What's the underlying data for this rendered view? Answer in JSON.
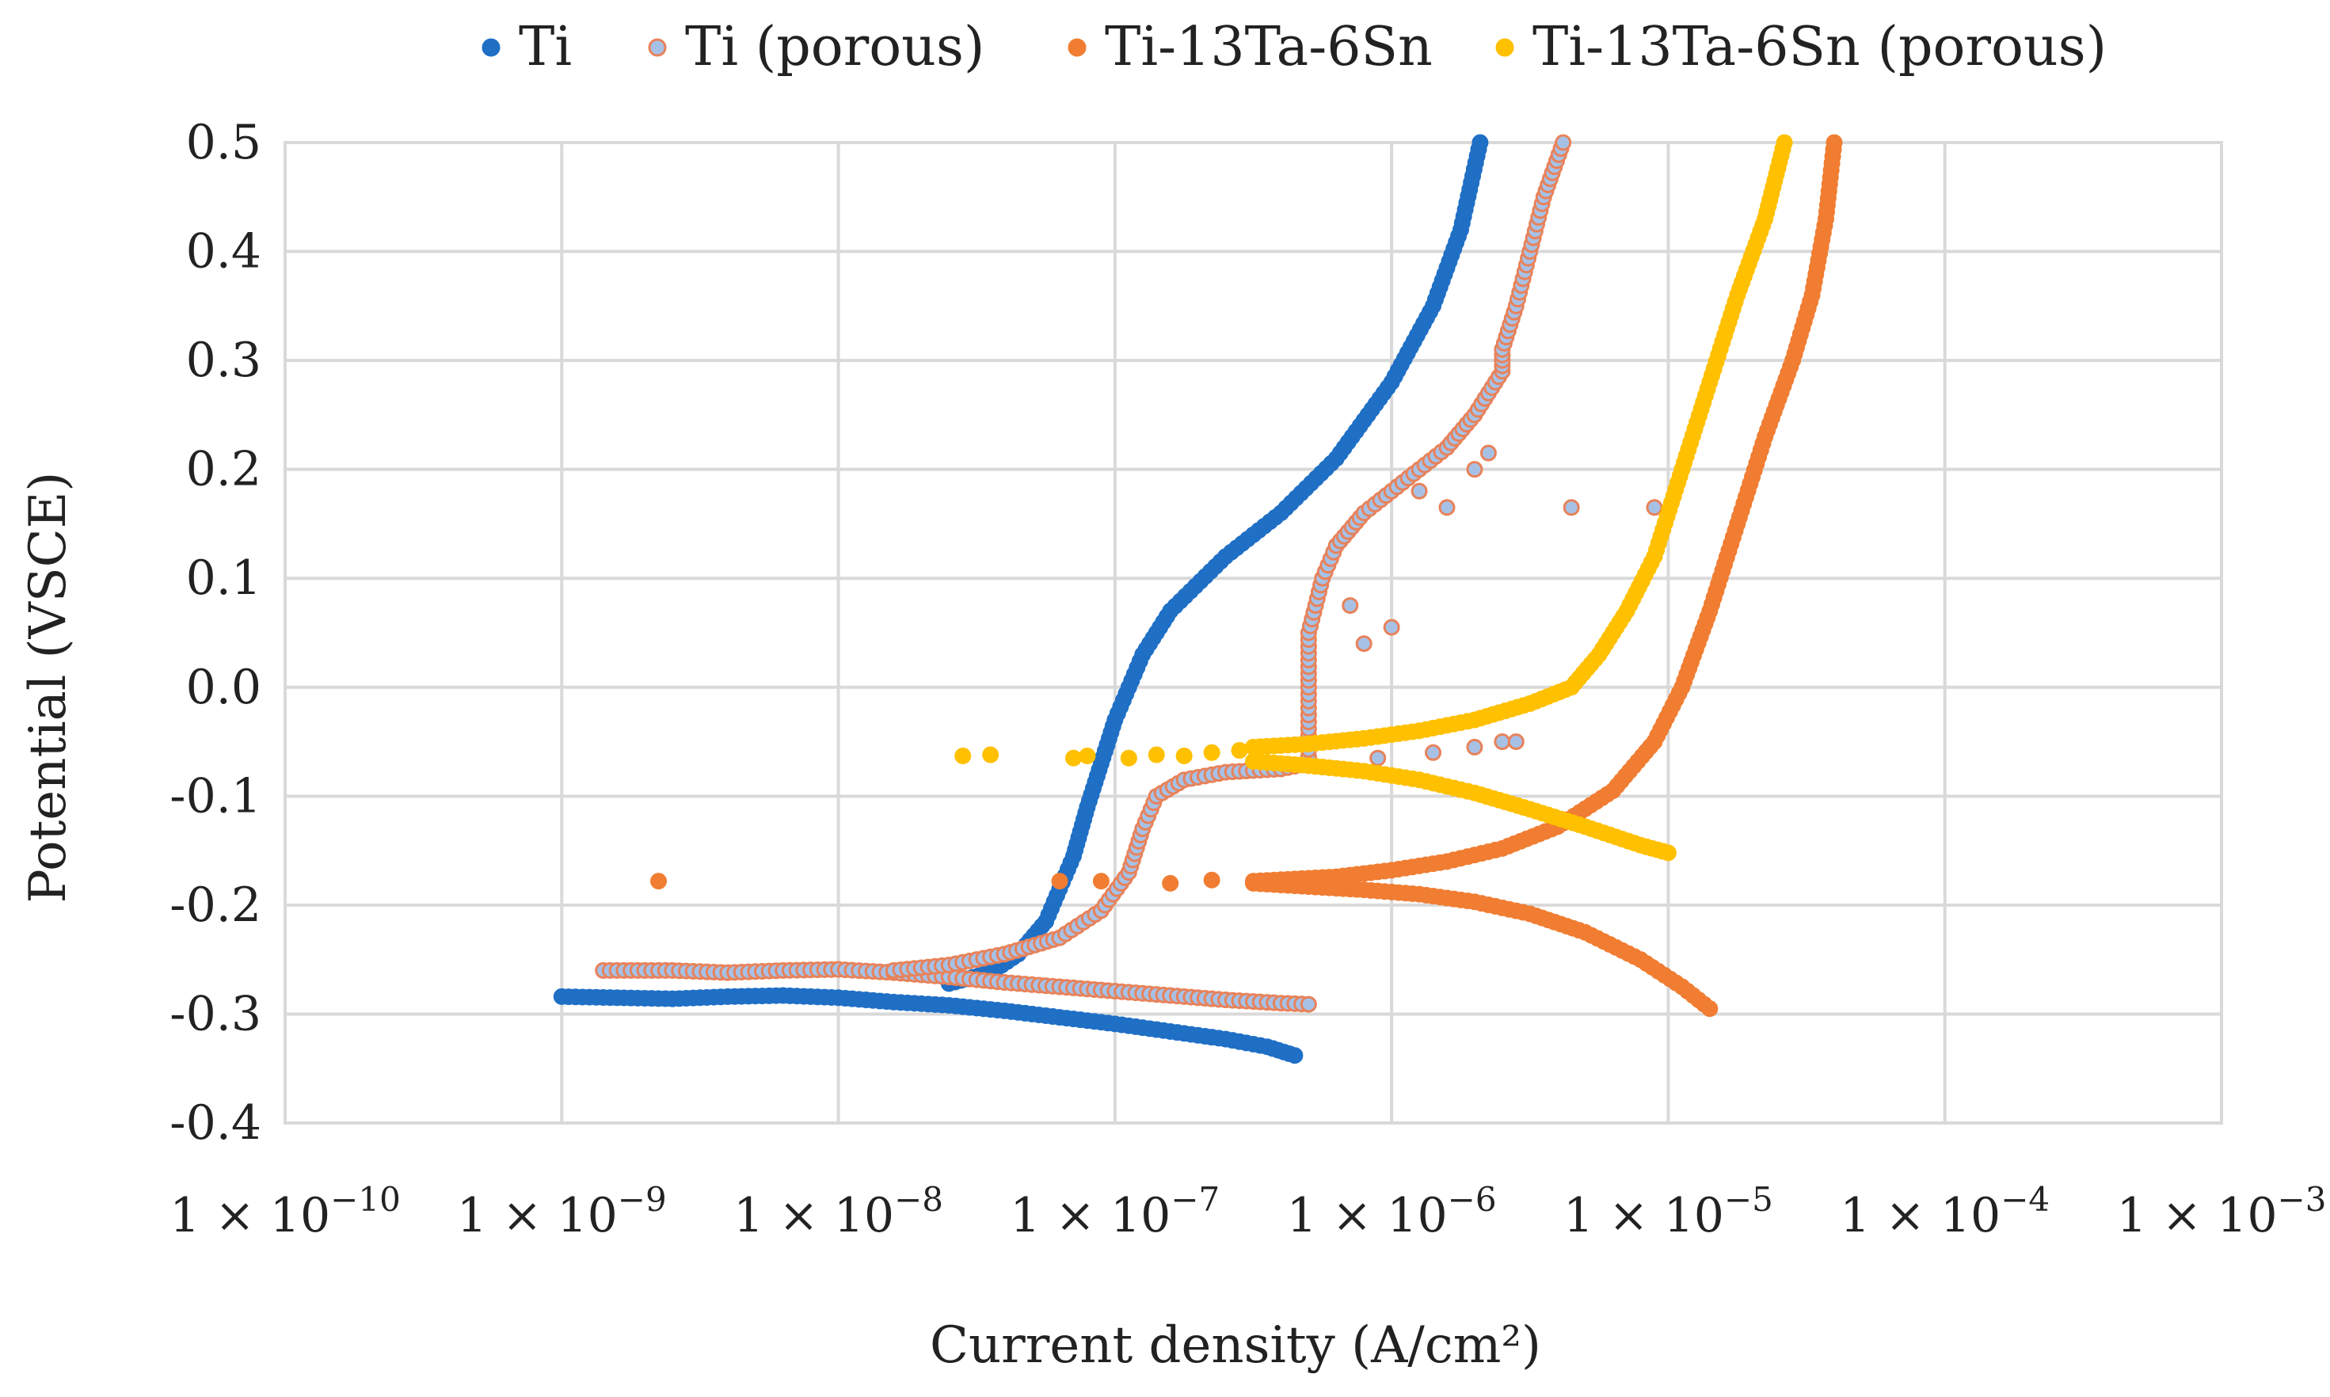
{
  "chart_data": {
    "type": "scatter",
    "title": "",
    "xlabel": "Current density (A/cm²)",
    "ylabel": "Potential (VSCE)",
    "xscale": "log",
    "xlim": [
      1e-10,
      0.001
    ],
    "ylim": [
      -0.4,
      0.5
    ],
    "grid": true,
    "legend_position": "top",
    "x_tick_labels": [
      {
        "coef": "1 × 10",
        "exp": "−10"
      },
      {
        "coef": "1 × 10",
        "exp": "−9"
      },
      {
        "coef": "1 × 10",
        "exp": "−8"
      },
      {
        "coef": "1 × 10",
        "exp": "−7"
      },
      {
        "coef": "1 × 10",
        "exp": "−6"
      },
      {
        "coef": "1 × 10",
        "exp": "−5"
      },
      {
        "coef": "1 × 10",
        "exp": "−4"
      },
      {
        "coef": "1 × 10",
        "exp": "−3"
      }
    ],
    "y_ticks": [
      "0.5",
      "0.4",
      "0.3",
      "0.2",
      "0.1",
      "0.0",
      "-0.1",
      "-0.2",
      "-0.3",
      "-0.4"
    ],
    "series": [
      {
        "name": "Ti",
        "color": "#1f6fc5",
        "marker_edge": "#1f6fc5",
        "cathodic": [
          [
            -9.0,
            -0.284
          ],
          [
            -8.8,
            -0.285
          ],
          [
            -8.6,
            -0.286
          ],
          [
            -8.4,
            -0.284
          ],
          [
            -8.2,
            -0.283
          ],
          [
            -8.0,
            -0.285
          ],
          [
            -7.8,
            -0.289
          ],
          [
            -7.6,
            -0.292
          ],
          [
            -7.4,
            -0.297
          ],
          [
            -7.2,
            -0.303
          ],
          [
            -7.0,
            -0.309
          ],
          [
            -6.8,
            -0.316
          ],
          [
            -6.6,
            -0.323
          ],
          [
            -6.45,
            -0.33
          ],
          [
            -6.35,
            -0.338
          ]
        ],
        "anodic": [
          [
            -7.6,
            -0.272
          ],
          [
            -7.45,
            -0.262
          ],
          [
            -7.35,
            -0.245
          ],
          [
            -7.25,
            -0.215
          ],
          [
            -7.2,
            -0.185
          ],
          [
            -7.15,
            -0.155
          ],
          [
            -7.1,
            -0.11
          ],
          [
            -7.05,
            -0.07
          ],
          [
            -7.0,
            -0.03
          ],
          [
            -6.95,
            0.0
          ],
          [
            -6.9,
            0.03
          ],
          [
            -6.8,
            0.07
          ],
          [
            -6.6,
            0.12
          ],
          [
            -6.4,
            0.16
          ],
          [
            -6.2,
            0.21
          ],
          [
            -6.0,
            0.28
          ],
          [
            -5.85,
            0.35
          ],
          [
            -5.75,
            0.42
          ],
          [
            -5.68,
            0.5
          ]
        ]
      },
      {
        "name": "Ti (porous)",
        "color": "#a7c1e6",
        "marker_edge": "#e8825a",
        "cathodic": [
          [
            -8.85,
            -0.26
          ],
          [
            -8.6,
            -0.26
          ],
          [
            -8.4,
            -0.262
          ],
          [
            -8.2,
            -0.26
          ],
          [
            -8.0,
            -0.259
          ],
          [
            -7.8,
            -0.262
          ],
          [
            -7.6,
            -0.266
          ],
          [
            -7.4,
            -0.271
          ],
          [
            -7.2,
            -0.275
          ],
          [
            -7.0,
            -0.279
          ],
          [
            -6.8,
            -0.283
          ],
          [
            -6.6,
            -0.287
          ],
          [
            -6.4,
            -0.29
          ],
          [
            -6.3,
            -0.291
          ]
        ],
        "anodic": [
          [
            -7.8,
            -0.26
          ],
          [
            -7.6,
            -0.255
          ],
          [
            -7.4,
            -0.245
          ],
          [
            -7.2,
            -0.23
          ],
          [
            -7.05,
            -0.205
          ],
          [
            -6.95,
            -0.17
          ],
          [
            -6.9,
            -0.13
          ],
          [
            -6.85,
            -0.1
          ],
          [
            -6.75,
            -0.085
          ],
          [
            -6.6,
            -0.078
          ],
          [
            -6.4,
            -0.075
          ],
          [
            -6.3,
            -0.07
          ],
          [
            -6.3,
            0.0
          ],
          [
            -6.3,
            0.05
          ],
          [
            -6.25,
            0.1
          ],
          [
            -6.2,
            0.13
          ],
          [
            -6.1,
            0.16
          ],
          [
            -6.0,
            0.18
          ],
          [
            -5.9,
            0.2
          ],
          [
            -5.8,
            0.22
          ],
          [
            -5.7,
            0.25
          ],
          [
            -5.6,
            0.29
          ],
          [
            -5.6,
            0.31
          ],
          [
            -5.55,
            0.35
          ],
          [
            -5.5,
            0.4
          ],
          [
            -5.45,
            0.45
          ],
          [
            -5.38,
            0.5
          ]
        ],
        "scatter_extra": [
          [
            -6.05,
            -0.065
          ],
          [
            -5.85,
            -0.06
          ],
          [
            -5.7,
            -0.055
          ],
          [
            -5.6,
            -0.05
          ],
          [
            -5.55,
            -0.05
          ],
          [
            -6.0,
            0.055
          ],
          [
            -6.1,
            0.04
          ],
          [
            -6.15,
            0.075
          ],
          [
            -5.8,
            0.165
          ],
          [
            -5.9,
            0.18
          ],
          [
            -5.7,
            0.2
          ],
          [
            -5.65,
            0.215
          ],
          [
            -5.35,
            0.165
          ],
          [
            -5.05,
            0.165
          ]
        ]
      },
      {
        "name": "Ti-13Ta-6Sn",
        "color": "#f07d32",
        "marker_edge": "#f07d32",
        "cathodic": [
          [
            -6.5,
            -0.18
          ],
          [
            -6.3,
            -0.183
          ],
          [
            -6.1,
            -0.186
          ],
          [
            -5.9,
            -0.19
          ],
          [
            -5.7,
            -0.197
          ],
          [
            -5.5,
            -0.208
          ],
          [
            -5.3,
            -0.225
          ],
          [
            -5.1,
            -0.25
          ],
          [
            -4.95,
            -0.275
          ],
          [
            -4.85,
            -0.295
          ]
        ],
        "anodic": [
          [
            -6.5,
            -0.178
          ],
          [
            -6.2,
            -0.174
          ],
          [
            -6.0,
            -0.168
          ],
          [
            -5.8,
            -0.16
          ],
          [
            -5.6,
            -0.148
          ],
          [
            -5.4,
            -0.128
          ],
          [
            -5.2,
            -0.095
          ],
          [
            -5.05,
            -0.05
          ],
          [
            -4.95,
            0.0
          ],
          [
            -4.85,
            0.07
          ],
          [
            -4.75,
            0.15
          ],
          [
            -4.65,
            0.23
          ],
          [
            -4.55,
            0.3
          ],
          [
            -4.48,
            0.36
          ],
          [
            -4.43,
            0.43
          ],
          [
            -4.4,
            0.5
          ]
        ],
        "scatter_extra": [
          [
            -8.65,
            -0.178
          ],
          [
            -7.2,
            -0.178
          ],
          [
            -7.05,
            -0.178
          ],
          [
            -6.8,
            -0.18
          ],
          [
            -6.65,
            -0.177
          ]
        ]
      },
      {
        "name": "Ti-13Ta-6Sn (porous)",
        "color": "#ffc000",
        "marker_edge": "#ffc000",
        "cathodic": [
          [
            -6.5,
            -0.068
          ],
          [
            -6.3,
            -0.072
          ],
          [
            -6.1,
            -0.077
          ],
          [
            -5.9,
            -0.085
          ],
          [
            -5.7,
            -0.097
          ],
          [
            -5.5,
            -0.112
          ],
          [
            -5.3,
            -0.128
          ],
          [
            -5.1,
            -0.145
          ],
          [
            -5.0,
            -0.152
          ]
        ],
        "anodic": [
          [
            -6.5,
            -0.055
          ],
          [
            -6.3,
            -0.052
          ],
          [
            -6.1,
            -0.047
          ],
          [
            -5.9,
            -0.04
          ],
          [
            -5.7,
            -0.03
          ],
          [
            -5.5,
            -0.015
          ],
          [
            -5.35,
            0.0
          ],
          [
            -5.25,
            0.03
          ],
          [
            -5.15,
            0.07
          ],
          [
            -5.05,
            0.12
          ],
          [
            -4.95,
            0.2
          ],
          [
            -4.85,
            0.28
          ],
          [
            -4.75,
            0.36
          ],
          [
            -4.65,
            0.43
          ],
          [
            -4.58,
            0.5
          ]
        ],
        "scatter_extra": [
          [
            -7.55,
            -0.063
          ],
          [
            -7.45,
            -0.062
          ],
          [
            -7.15,
            -0.065
          ],
          [
            -7.1,
            -0.063
          ],
          [
            -6.95,
            -0.065
          ],
          [
            -6.85,
            -0.062
          ],
          [
            -6.75,
            -0.063
          ],
          [
            -6.65,
            -0.06
          ],
          [
            -6.55,
            -0.058
          ]
        ]
      }
    ]
  }
}
